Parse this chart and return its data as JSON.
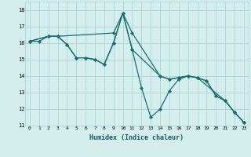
{
  "xlabel": "Humidex (Indice chaleur)",
  "background_color": "#d4eeee",
  "grid_color": "#b0d8d8",
  "line_color": "#1a6e6e",
  "marker_color": "#1a6e6e",
  "xlim": [
    -0.5,
    23.5
  ],
  "ylim": [
    11,
    18.5
  ],
  "xticks": [
    0,
    1,
    2,
    3,
    4,
    5,
    6,
    7,
    8,
    9,
    10,
    11,
    12,
    13,
    14,
    15,
    16,
    17,
    18,
    19,
    20,
    21,
    22,
    23
  ],
  "yticks": [
    11,
    12,
    13,
    14,
    15,
    16,
    17,
    18
  ],
  "series": [
    {
      "x": [
        0,
        1,
        2,
        3,
        4,
        5,
        6,
        7,
        8,
        9,
        10,
        11,
        12,
        13,
        14,
        15,
        16,
        17,
        18,
        19,
        20,
        21,
        22,
        23
      ],
      "y": [
        16.1,
        16.1,
        16.4,
        16.4,
        15.9,
        15.1,
        15.1,
        15.0,
        14.7,
        16.0,
        17.8,
        15.6,
        13.3,
        11.5,
        12.0,
        13.1,
        13.8,
        14.0,
        13.9,
        13.7,
        12.8,
        12.5,
        11.8,
        11.2
      ]
    },
    {
      "x": [
        0,
        2,
        3,
        9,
        10,
        11,
        14,
        15,
        16,
        17,
        18,
        19,
        20,
        21,
        22,
        23
      ],
      "y": [
        16.1,
        16.4,
        16.4,
        16.6,
        17.8,
        16.6,
        14.0,
        13.8,
        13.9,
        14.0,
        13.9,
        13.7,
        12.8,
        12.5,
        11.8,
        11.2
      ]
    },
    {
      "x": [
        0,
        2,
        3,
        4,
        5,
        6,
        7,
        8,
        9,
        10,
        11,
        14,
        15,
        16,
        17,
        18,
        21,
        22,
        23
      ],
      "y": [
        16.1,
        16.4,
        16.4,
        15.9,
        15.1,
        15.1,
        15.0,
        14.7,
        16.0,
        17.8,
        15.6,
        14.0,
        13.8,
        13.9,
        14.0,
        13.9,
        12.5,
        11.8,
        11.2
      ]
    }
  ]
}
